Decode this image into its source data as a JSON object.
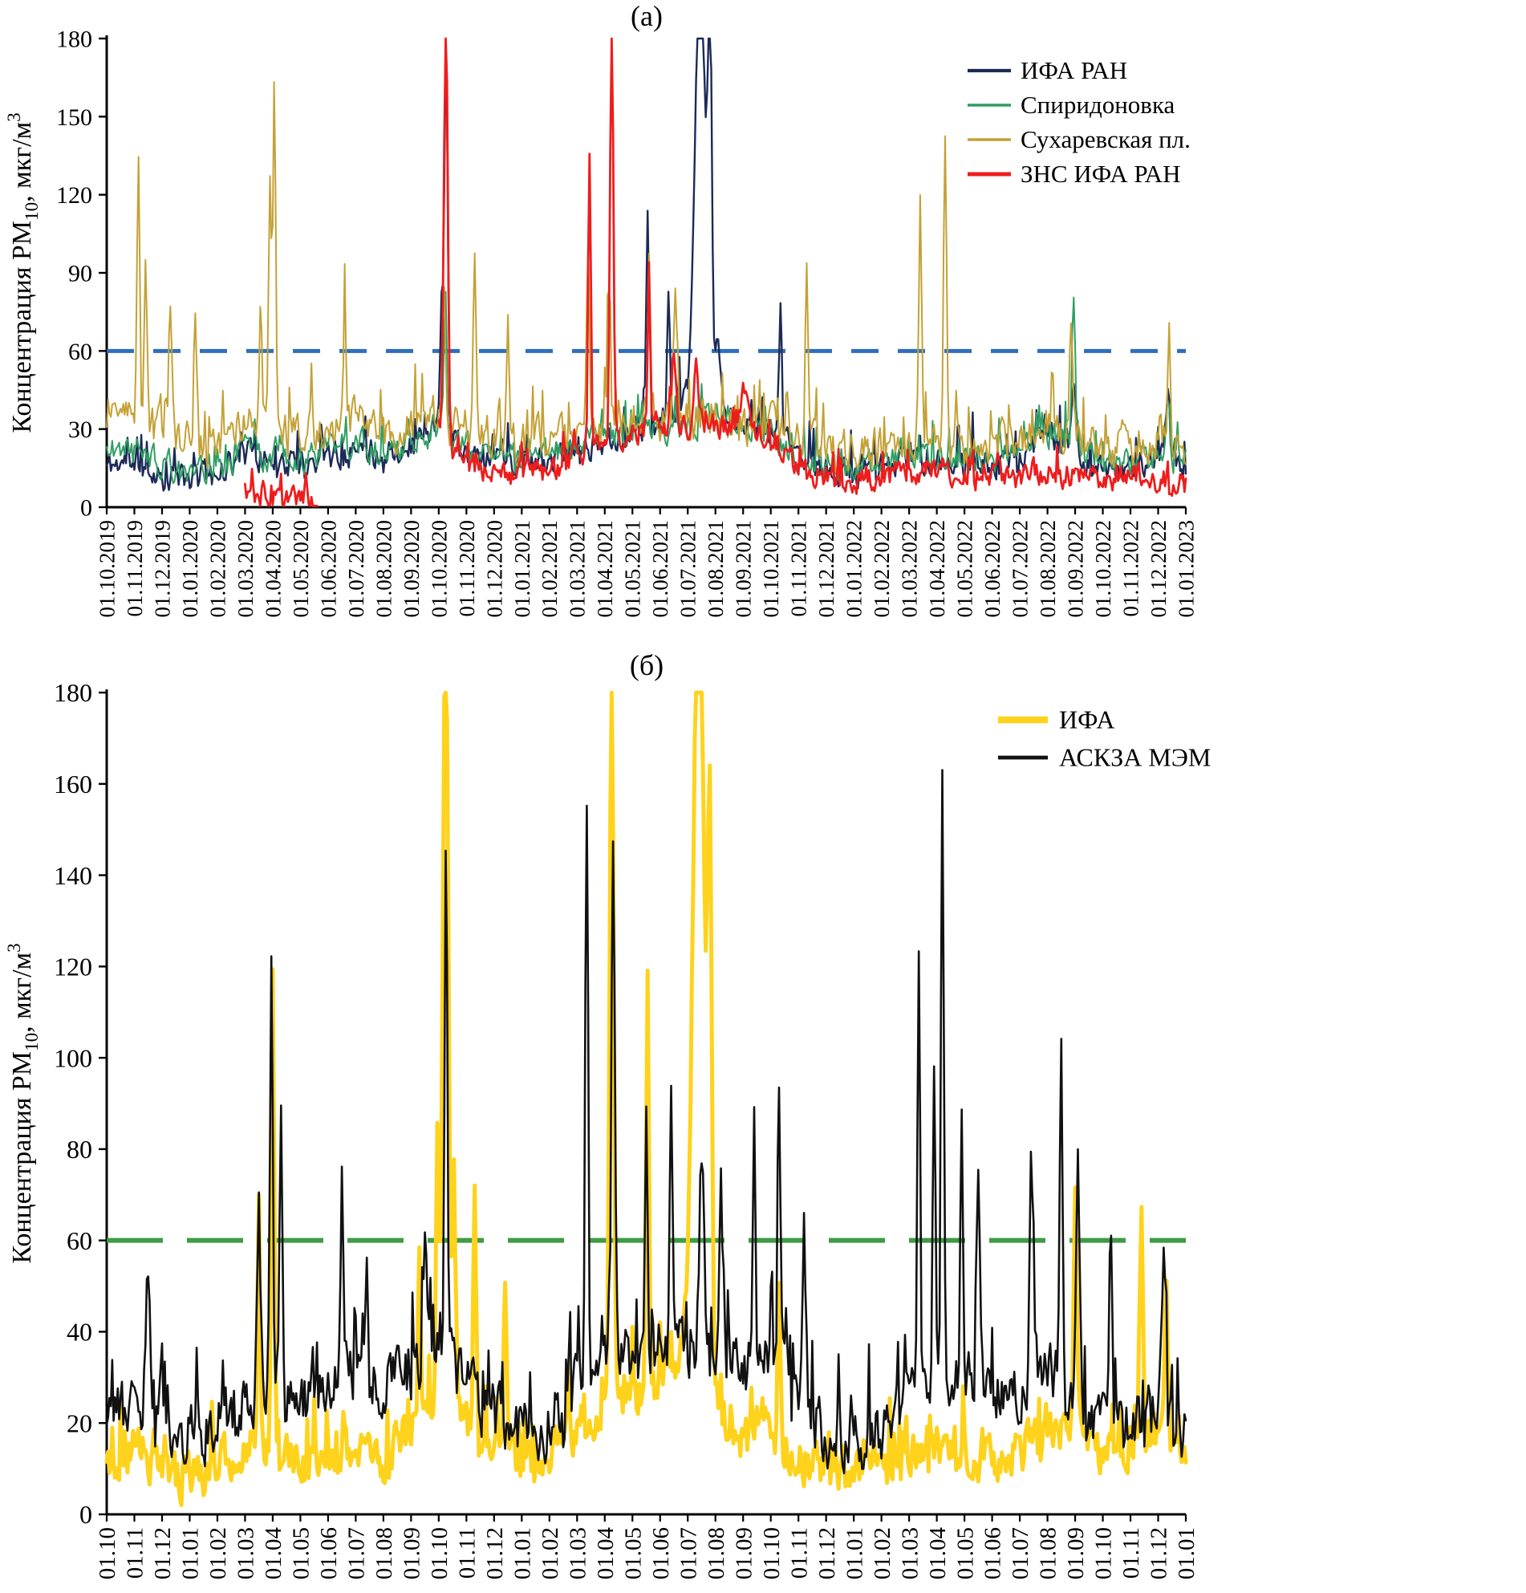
{
  "page": {
    "background": "#ffffff"
  },
  "chart_data": [
    {
      "id": "a",
      "type": "line",
      "title": "(а)",
      "xlabel": "",
      "ylabel": {
        "prefix": "Концентрация PM",
        "sub": "10",
        "mid": ", мкг/м",
        "sup": "3"
      },
      "ylim": [
        0,
        180
      ],
      "yticks": [
        0,
        30,
        60,
        90,
        120,
        150,
        180
      ],
      "grid": false,
      "legend_position": "top-right",
      "xtick_labels": [
        "01.10.2019",
        "01.11.2019",
        "01.12.2019",
        "01.01.2020",
        "01.02.2020",
        "01.03.2020",
        "01.04.2020",
        "01.05.2020",
        "01.06.2020",
        "01.07.2020",
        "01.08.2020",
        "01.09.2020",
        "01.10.2020",
        "01.11.2020",
        "01.12.2020",
        "01.01.2021",
        "01.02.2021",
        "01.03.2021",
        "01.04.2021",
        "01.05.2021",
        "01.06.2021",
        "01.07.2021",
        "01.08.2021",
        "01.09.2021",
        "01.10.2021",
        "01.11.2021",
        "01.12.2021",
        "01.01.2022",
        "01.02.2022",
        "01.03.2022",
        "01.04.2022",
        "01.05.2022",
        "01.06.2022",
        "01.07.2022",
        "01.08.2022",
        "01.09.2022",
        "01.10.2022",
        "01.11.2022",
        "01.12.2022",
        "01.01.2023"
      ],
      "guideline": {
        "value": 60,
        "color": "#2e6fba",
        "dash": "34 24",
        "width": 5
      },
      "series": [
        {
          "name": "ИФА РАН",
          "color": "#1b2a57",
          "width": 2.4,
          "seed": 11,
          "noise": 9,
          "spike": 16,
          "baseline": [
            16,
            18,
            12,
            10,
            14,
            20,
            18,
            16,
            20,
            22,
            20,
            24,
            30,
            22,
            18,
            16,
            18,
            22,
            26,
            30,
            32,
            40,
            38,
            30,
            32,
            18,
            14,
            13,
            14,
            18,
            18,
            16,
            16,
            18,
            26,
            22,
            14,
            16,
            20,
            14
          ],
          "peaks": [
            {
              "x": 12.1,
              "v": 50,
              "w": 0.05
            },
            {
              "x": 12.26,
              "v": 150,
              "w": 0.06
            },
            {
              "x": 19.55,
              "v": 88,
              "w": 0.05
            },
            {
              "x": 20.3,
              "v": 48,
              "w": 0.05
            },
            {
              "x": 21.45,
              "v": 170,
              "w": 0.18
            },
            {
              "x": 21.8,
              "v": 150,
              "w": 0.07
            },
            {
              "x": 22.1,
              "v": 30,
              "w": 0.08
            },
            {
              "x": 24.35,
              "v": 32,
              "w": 0.06
            },
            {
              "x": 34.95,
              "v": 30,
              "w": 0.08
            },
            {
              "x": 38.35,
              "v": 28,
              "w": 0.06
            }
          ]
        },
        {
          "name": "Спиридоновка",
          "color": "#2f9e63",
          "width": 2.0,
          "seed": 22,
          "noise": 9,
          "spike": 13,
          "baseline": [
            22,
            24,
            16,
            14,
            16,
            22,
            20,
            18,
            22,
            24,
            22,
            26,
            30,
            24,
            20,
            18,
            20,
            24,
            26,
            28,
            30,
            32,
            34,
            28,
            30,
            20,
            16,
            15,
            16,
            20,
            20,
            18,
            18,
            20,
            28,
            24,
            16,
            18,
            22,
            16
          ],
          "peaks": [
            {
              "x": 12.24,
              "v": 50,
              "w": 0.05
            },
            {
              "x": 34.95,
              "v": 60,
              "w": 0.06
            },
            {
              "x": 38.35,
              "v": 25,
              "w": 0.06
            }
          ]
        },
        {
          "name": "Сухаревская пл.",
          "color": "#c4a136",
          "width": 2.0,
          "seed": 33,
          "noise": 13,
          "spike": 20,
          "baseline": [
            30,
            36,
            28,
            24,
            26,
            32,
            30,
            26,
            30,
            32,
            28,
            30,
            34,
            30,
            26,
            24,
            26,
            30,
            30,
            32,
            34,
            34,
            36,
            30,
            32,
            26,
            22,
            20,
            22,
            26,
            28,
            24,
            24,
            26,
            32,
            28,
            22,
            24,
            28,
            20
          ],
          "peaks": [
            {
              "x": 1.15,
              "v": 100,
              "w": 0.05
            },
            {
              "x": 1.4,
              "v": 60,
              "w": 0.05
            },
            {
              "x": 2.3,
              "v": 50,
              "w": 0.05
            },
            {
              "x": 3.2,
              "v": 56,
              "w": 0.05
            },
            {
              "x": 5.55,
              "v": 40,
              "w": 0.05
            },
            {
              "x": 5.9,
              "v": 88,
              "w": 0.05
            },
            {
              "x": 6.06,
              "v": 142,
              "w": 0.05
            },
            {
              "x": 8.6,
              "v": 40,
              "w": 0.05
            },
            {
              "x": 12.2,
              "v": 52,
              "w": 0.05
            },
            {
              "x": 13.3,
              "v": 72,
              "w": 0.05
            },
            {
              "x": 14.5,
              "v": 50,
              "w": 0.05
            },
            {
              "x": 17.4,
              "v": 64,
              "w": 0.05
            },
            {
              "x": 18.15,
              "v": 40,
              "w": 0.05
            },
            {
              "x": 19.6,
              "v": 68,
              "w": 0.05
            },
            {
              "x": 20.55,
              "v": 44,
              "w": 0.05
            },
            {
              "x": 25.3,
              "v": 62,
              "w": 0.05
            },
            {
              "x": 29.4,
              "v": 86,
              "w": 0.05
            },
            {
              "x": 30.3,
              "v": 122,
              "w": 0.05
            },
            {
              "x": 34.85,
              "v": 44,
              "w": 0.06
            },
            {
              "x": 38.4,
              "v": 42,
              "w": 0.05
            }
          ]
        },
        {
          "name": "ЗНС ИФА РАН",
          "color": "#ee1d1d",
          "width": 2.8,
          "seed": 44,
          "noise": 8,
          "spike": 11,
          "segments": [
            [
              5.0,
              7.6
            ],
            [
              12.0,
              39
            ]
          ],
          "baseline": [
            0,
            0,
            0,
            0,
            0,
            6,
            4,
            3,
            3,
            3,
            3,
            3,
            30,
            16,
            14,
            12,
            14,
            20,
            22,
            30,
            32,
            30,
            32,
            26,
            28,
            14,
            12,
            11,
            12,
            14,
            14,
            12,
            12,
            12,
            14,
            12,
            10,
            12,
            10,
            8
          ],
          "peaks": [
            {
              "x": 12.26,
              "v": 160,
              "w": 0.07
            },
            {
              "x": 17.45,
              "v": 115,
              "w": 0.05
            },
            {
              "x": 18.25,
              "v": 165,
              "w": 0.06
            },
            {
              "x": 19.6,
              "v": 52,
              "w": 0.05
            },
            {
              "x": 20.5,
              "v": 30,
              "w": 0.07
            },
            {
              "x": 21.3,
              "v": 25,
              "w": 0.1
            },
            {
              "x": 23.0,
              "v": 18,
              "w": 0.15
            }
          ]
        }
      ]
    },
    {
      "id": "b",
      "type": "line",
      "title": "(б)",
      "xlabel": "",
      "ylabel": {
        "prefix": "Концентрация PM",
        "sub": "10",
        "mid": ", мкг/м",
        "sup": "3"
      },
      "ylim": [
        0,
        180
      ],
      "yticks": [
        0,
        20,
        40,
        60,
        80,
        100,
        120,
        140,
        160,
        180
      ],
      "grid": false,
      "legend_position": "top-right",
      "xtick_labels": [
        "01.10",
        "01.11",
        "01.12",
        "01.01",
        "01.02",
        "01.03",
        "01.04",
        "01.05",
        "01.06",
        "01.07",
        "01.08",
        "01.09",
        "01.10",
        "01.11",
        "01.12",
        "01.01",
        "01.02",
        "01.03",
        "01.04",
        "01.05",
        "01.06",
        "01.07",
        "01.08",
        "01.09",
        "01.10",
        "01.11",
        "01.12",
        "01.01",
        "01.02",
        "01.03",
        "01.04",
        "01.05",
        "01.06",
        "01.07",
        "01.08",
        "01.09",
        "01.10",
        "01.11",
        "01.12",
        "01.01"
      ],
      "guideline": {
        "value": 60,
        "color": "#3f9b45",
        "dash": "70 30",
        "width": 6
      },
      "series": [
        {
          "name": "ИФА",
          "color": "#ffd21c",
          "width": 5,
          "seed": 55,
          "noise": 8,
          "spike": 12,
          "baseline": [
            12,
            14,
            10,
            8,
            10,
            16,
            14,
            10,
            12,
            14,
            12,
            18,
            26,
            20,
            16,
            12,
            14,
            18,
            22,
            26,
            28,
            38,
            24,
            16,
            18,
            12,
            10,
            10,
            11,
            14,
            14,
            12,
            12,
            14,
            18,
            20,
            12,
            16,
            18,
            10
          ],
          "peaks": [
            {
              "x": 5.5,
              "v": 45,
              "w": 0.05
            },
            {
              "x": 6.0,
              "v": 104,
              "w": 0.05
            },
            {
              "x": 11.3,
              "v": 40,
              "w": 0.05
            },
            {
              "x": 11.95,
              "v": 60,
              "w": 0.05
            },
            {
              "x": 12.25,
              "v": 170,
              "w": 0.1
            },
            {
              "x": 12.55,
              "v": 50,
              "w": 0.05
            },
            {
              "x": 13.3,
              "v": 54,
              "w": 0.05
            },
            {
              "x": 14.4,
              "v": 38,
              "w": 0.05
            },
            {
              "x": 18.25,
              "v": 168,
              "w": 0.07
            },
            {
              "x": 19.55,
              "v": 92,
              "w": 0.05
            },
            {
              "x": 21.4,
              "v": 175,
              "w": 0.2
            },
            {
              "x": 21.8,
              "v": 110,
              "w": 0.07
            },
            {
              "x": 24.3,
              "v": 38,
              "w": 0.05
            },
            {
              "x": 35.0,
              "v": 50,
              "w": 0.05
            },
            {
              "x": 37.4,
              "v": 50,
              "w": 0.05
            },
            {
              "x": 38.3,
              "v": 38,
              "w": 0.05
            }
          ]
        },
        {
          "name": "АСКЗА МЭМ",
          "color": "#111111",
          "width": 2.6,
          "seed": 66,
          "noise": 11,
          "spike": 18,
          "baseline": [
            20,
            26,
            22,
            18,
            20,
            26,
            28,
            24,
            30,
            32,
            28,
            30,
            36,
            28,
            22,
            18,
            20,
            28,
            34,
            34,
            36,
            38,
            34,
            32,
            34,
            24,
            18,
            16,
            18,
            26,
            30,
            28,
            26,
            28,
            30,
            26,
            20,
            20,
            22,
            16
          ],
          "peaks": [
            {
              "x": 1.5,
              "v": 28,
              "w": 0.08
            },
            {
              "x": 5.5,
              "v": 32,
              "w": 0.06
            },
            {
              "x": 5.95,
              "v": 86,
              "w": 0.05
            },
            {
              "x": 6.3,
              "v": 70,
              "w": 0.05
            },
            {
              "x": 8.5,
              "v": 40,
              "w": 0.05
            },
            {
              "x": 9.4,
              "v": 34,
              "w": 0.05
            },
            {
              "x": 11.5,
              "v": 36,
              "w": 0.05
            },
            {
              "x": 12.26,
              "v": 110,
              "w": 0.05
            },
            {
              "x": 17.35,
              "v": 132,
              "w": 0.05
            },
            {
              "x": 18.3,
              "v": 118,
              "w": 0.06
            },
            {
              "x": 19.5,
              "v": 50,
              "w": 0.05
            },
            {
              "x": 20.4,
              "v": 55,
              "w": 0.05
            },
            {
              "x": 21.5,
              "v": 42,
              "w": 0.08
            },
            {
              "x": 22.2,
              "v": 38,
              "w": 0.06
            },
            {
              "x": 23.4,
              "v": 57,
              "w": 0.05
            },
            {
              "x": 24.3,
              "v": 56,
              "w": 0.05
            },
            {
              "x": 25.2,
              "v": 42,
              "w": 0.05
            },
            {
              "x": 29.35,
              "v": 104,
              "w": 0.05
            },
            {
              "x": 29.9,
              "v": 76,
              "w": 0.05
            },
            {
              "x": 30.2,
              "v": 128,
              "w": 0.05
            },
            {
              "x": 30.9,
              "v": 56,
              "w": 0.05
            },
            {
              "x": 31.5,
              "v": 50,
              "w": 0.06
            },
            {
              "x": 33.4,
              "v": 50,
              "w": 0.06
            },
            {
              "x": 34.5,
              "v": 74,
              "w": 0.05
            },
            {
              "x": 35.1,
              "v": 50,
              "w": 0.06
            },
            {
              "x": 36.3,
              "v": 36,
              "w": 0.05
            },
            {
              "x": 38.2,
              "v": 34,
              "w": 0.07
            }
          ]
        }
      ]
    }
  ]
}
